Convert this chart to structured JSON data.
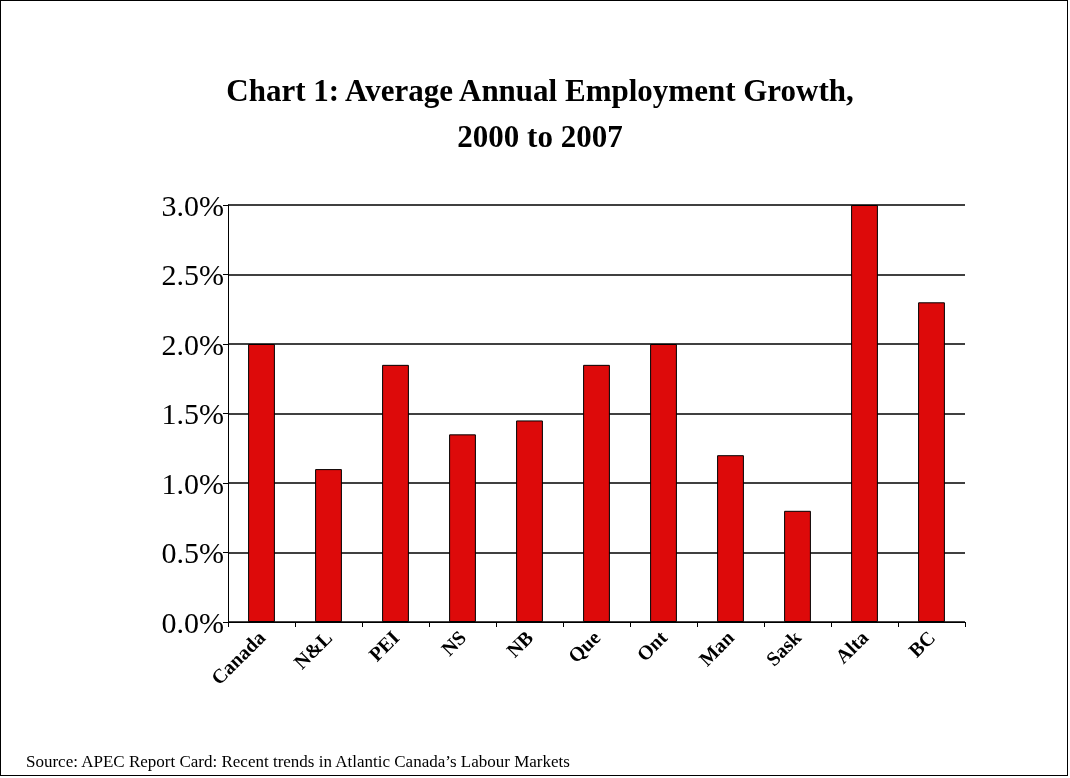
{
  "chart_data": {
    "type": "bar",
    "title": "Chart 1: Average Annual Employment Growth,\n2000 to 2007",
    "categories": [
      "Canada",
      "N&L",
      "PEI",
      "NS",
      "NB",
      "Que",
      "Ont",
      "Man",
      "Sask",
      "Alta",
      "BC"
    ],
    "values": [
      2.0,
      1.1,
      1.85,
      1.35,
      1.45,
      1.85,
      2.0,
      1.2,
      0.8,
      3.0,
      2.3
    ],
    "color": "#dd0a0a",
    "ylim": [
      0,
      3
    ],
    "yticks": [
      {
        "value": 0,
        "label": "0.0%"
      },
      {
        "value": 0.5,
        "label": "0.5%"
      },
      {
        "value": 1,
        "label": "1.0%"
      },
      {
        "value": 1.5,
        "label": "1.5%"
      },
      {
        "value": 2,
        "label": "2.0%"
      },
      {
        "value": 2.5,
        "label": "2.5%"
      },
      {
        "value": 3,
        "label": "3.0%"
      }
    ],
    "grid": "y",
    "annotations": [
      "Source: APEC Report Card: Recent trends in Atlantic Canada’s Labour Markets"
    ]
  }
}
